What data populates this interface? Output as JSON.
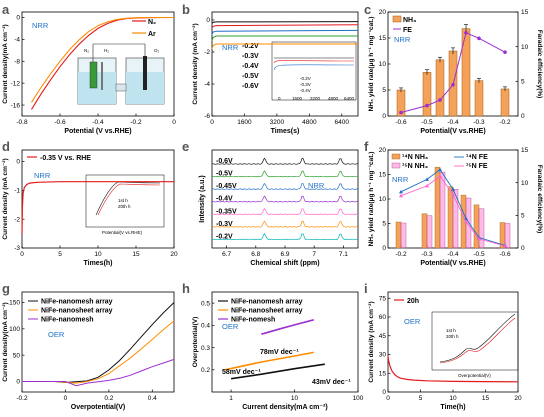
{
  "colors": {
    "red": "#e31a1c",
    "orange": "#ff8c00",
    "green": "#2ca02c",
    "blue": "#1e6fc8",
    "purple": "#9b30d0",
    "pink": "#ff66cc",
    "black": "#111111",
    "darkred": "#b01030",
    "bar": "#f4a259",
    "cyan": "#00b3b3"
  },
  "panels": {
    "a": {
      "letter": "a",
      "xlabel": "Potential (V vs.RHE)",
      "ylabel": "Current density(mA cm⁻²)",
      "note": "NRR",
      "inset": {
        "n2": "N₂",
        "ar": "Ar",
        "ln2": "N₂",
        "lh2": "H₂",
        "lo2": "O₂"
      }
    },
    "b": {
      "letter": "b",
      "xlabel": "Times(s)",
      "ylabel": "Current density (mA cm⁻²)",
      "note": "NRR",
      "inset": {
        "ylabel": "Current density (mA cm⁻²)",
        "labels": [
          "-0.2V",
          "-0.3V",
          "-0.4V"
        ]
      }
    },
    "c": {
      "letter": "c",
      "xlabel": "Potential(V vs.RHE)",
      "ylabel": "NH₃ yield rate(μg h⁻¹ mg⁻¹cat.)",
      "y2label": "Faradaic efficiency(%)",
      "note": "NRR"
    },
    "d": {
      "letter": "d",
      "xlabel": "Times(h)",
      "ylabel": "Current density (mA cm⁻²)",
      "note": "NRR",
      "legend": "-0.35 V vs. RHE",
      "inset": {
        "ylabel": "Current density (mA cm⁻²)",
        "xlabel": "Potential(V vs.RHE)",
        "l1": "1st h",
        "l2": "20th h"
      }
    },
    "e": {
      "letter": "e",
      "xlabel": "Chemical shift (ppm)",
      "ylabel": "Intensity (a.u.)",
      "note": "NRR"
    },
    "f": {
      "letter": "f",
      "xlabel": "Potential(V vs.RHE)",
      "ylabel": "NH₃ yield rate(μg h⁻¹ mg⁻¹cat.)",
      "y2label": "Faradaic efficiency(%)",
      "note": "NRR"
    },
    "g": {
      "letter": "g",
      "xlabel": "Overpotential(V)",
      "ylabel": "Current density(mA cm⁻²)",
      "note": "OER"
    },
    "h": {
      "letter": "h",
      "xlabel": "Current density(mA cm⁻²)",
      "ylabel": "Overpotential(V)",
      "note": "OER"
    },
    "i": {
      "letter": "i",
      "xlabel": "Time(h)",
      "ylabel": "Current density (mA cm⁻²)",
      "note": "OER",
      "legend": "20h",
      "inset": {
        "ylabel": "Current density (mA cm⁻²)",
        "xlabel": "Overpotential(V)",
        "l1": "1st h",
        "l2": "20th h"
      }
    }
  },
  "chart_data": [
    {
      "panel": "a",
      "type": "line",
      "xlabel": "Potential (V vs.RHE)",
      "ylabel": "Current density(mA cm⁻²)",
      "xlim": [
        -0.8,
        0.0
      ],
      "ylim": [
        -18,
        1
      ],
      "xticks": [
        -0.8,
        -0.6,
        -0.4,
        -0.2,
        0.0
      ],
      "yticks": [
        0,
        -4,
        -8,
        -12,
        -16
      ],
      "series": [
        {
          "name": "N₂",
          "color": "red",
          "x": [
            -0.75,
            -0.7,
            -0.65,
            -0.6,
            -0.55,
            -0.5,
            -0.45,
            -0.4,
            -0.35,
            -0.3,
            -0.25,
            -0.2,
            -0.1,
            0.0
          ],
          "y": [
            -16.8,
            -14.0,
            -11.4,
            -9.0,
            -6.8,
            -4.9,
            -3.3,
            -2.0,
            -1.1,
            -0.5,
            -0.2,
            -0.08,
            -0.02,
            0
          ]
        },
        {
          "name": "Ar",
          "color": "orange",
          "x": [
            -0.75,
            -0.7,
            -0.65,
            -0.6,
            -0.55,
            -0.5,
            -0.45,
            -0.4,
            -0.35,
            -0.3,
            -0.25,
            -0.2,
            -0.1,
            0.0
          ],
          "y": [
            -15.5,
            -12.8,
            -10.3,
            -8.0,
            -5.9,
            -4.1,
            -2.6,
            -1.5,
            -0.8,
            -0.35,
            -0.15,
            -0.05,
            -0.01,
            0
          ]
        }
      ]
    },
    {
      "panel": "b",
      "type": "line",
      "xlabel": "Times(s)",
      "ylabel": "Current density (mA cm⁻²)",
      "xlim": [
        0,
        7200
      ],
      "ylim": [
        -6,
        0.5
      ],
      "xticks": [
        0,
        1600,
        3200,
        4800,
        6400
      ],
      "yticks": [
        0,
        -2,
        -4,
        -6
      ],
      "series": [
        {
          "name": "-0.2V",
          "color": "black",
          "x": [
            0,
            50,
            200,
            7200
          ],
          "y": [
            -0.2,
            -0.15,
            -0.12,
            -0.1
          ]
        },
        {
          "name": "-0.3V",
          "color": "red",
          "x": [
            0,
            50,
            200,
            7200
          ],
          "y": [
            -0.5,
            -0.4,
            -0.35,
            -0.3
          ]
        },
        {
          "name": "-0.4V",
          "color": "blue",
          "x": [
            0,
            50,
            200,
            7200
          ],
          "y": [
            -0.9,
            -0.75,
            -0.7,
            -0.65
          ]
        },
        {
          "name": "-0.5V",
          "color": "green",
          "x": [
            0,
            50,
            200,
            7200
          ],
          "y": [
            -1.3,
            -1.1,
            -1.0,
            -1.0
          ]
        },
        {
          "name": "-0.6V",
          "color": "orange",
          "x": [
            0,
            50,
            200,
            7200
          ],
          "y": [
            -1.8,
            -1.6,
            -1.5,
            -1.5
          ]
        }
      ],
      "inset": {
        "xticks": [
          0,
          1600,
          3200,
          4800,
          6400
        ],
        "series_labels": [
          "-0.2V",
          "-0.3V",
          "-0.4V"
        ]
      }
    },
    {
      "panel": "c",
      "type": "bar",
      "xlabel": "Potential(V vs.RHE)",
      "ylabel": "NH₃ yield rate(μg h⁻¹ mg⁻¹cat.)",
      "y2label": "Faradaic efficiency(%)",
      "categories": [
        "-0.6",
        "-0.5",
        "-0.45",
        "-0.4",
        "-0.35",
        "-0.3",
        "-0.2"
      ],
      "x": [
        -0.6,
        -0.5,
        -0.45,
        -0.4,
        -0.35,
        -0.3,
        -0.2
      ],
      "xticks": [
        -0.6,
        -0.5,
        -0.4,
        -0.3,
        -0.2
      ],
      "xlim": [
        -0.65,
        -0.15
      ],
      "ylim": [
        0,
        20
      ],
      "yticks": [
        0,
        5,
        10,
        15,
        20
      ],
      "y2lim": [
        0,
        15
      ],
      "y2ticks": [
        0,
        5,
        10,
        15
      ],
      "series": [
        {
          "name": "NH₃",
          "color": "bar",
          "values": [
            5.0,
            8.4,
            10.8,
            12.5,
            16.8,
            6.8,
            5.2
          ],
          "err": [
            0.4,
            0.5,
            0.5,
            0.6,
            0.8,
            0.4,
            0.4
          ]
        },
        {
          "name": "FE",
          "color": "purple",
          "axis": "y2",
          "values": [
            0.5,
            1.5,
            2.3,
            4.5,
            12.0,
            11.2,
            9.2
          ]
        }
      ]
    },
    {
      "panel": "d",
      "type": "line",
      "xlabel": "Times(h)",
      "ylabel": "Current density (mA cm⁻²)",
      "xlim": [
        0,
        20
      ],
      "ylim": [
        -3,
        0.4
      ],
      "xticks": [
        0,
        5,
        10,
        15,
        20
      ],
      "yticks": [
        0,
        -1,
        -2,
        -3
      ],
      "series": [
        {
          "name": "-0.35 V vs. RHE",
          "color": "red",
          "x": [
            0,
            0.05,
            0.15,
            0.3,
            0.6,
            1,
            2,
            5,
            10,
            15,
            20
          ],
          "y": [
            -2.5,
            -1.6,
            -1.1,
            -0.9,
            -0.8,
            -0.75,
            -0.72,
            -0.7,
            -0.7,
            -0.7,
            -0.7
          ]
        }
      ],
      "inset": {
        "xticks": [
          -0.8,
          -0.6,
          -0.4,
          -0.2,
          0.0
        ],
        "series": [
          "1st h",
          "20th h"
        ]
      }
    },
    {
      "panel": "e",
      "type": "line",
      "xlabel": "Chemical shift (ppm)",
      "ylabel": "Intensity (a.u.)",
      "xlim": [
        6.65,
        7.15
      ],
      "xticks": [
        6.7,
        6.8,
        6.9,
        7.0,
        7.1
      ],
      "peaks_ppm": [
        6.83,
        6.96,
        7.09
      ],
      "series": [
        {
          "name": "-0.6V",
          "color": "black"
        },
        {
          "name": "-0.5V",
          "color": "green"
        },
        {
          "name": "-0.45V",
          "color": "blue"
        },
        {
          "name": "-0.4V",
          "color": "purple"
        },
        {
          "name": "-0.35V",
          "color": "pink"
        },
        {
          "name": "-0.3V",
          "color": "orange"
        },
        {
          "name": "-0.2V",
          "color": "cyan"
        }
      ]
    },
    {
      "panel": "f",
      "type": "bar",
      "xlabel": "Potential(V vs.RHE)",
      "ylabel": "NH₃ yield rate(μg h⁻¹ mg⁻¹cat.)",
      "y2label": "Faradaic efficiency(%)",
      "categories": [
        "-0.2",
        "-0.3",
        "-0.35",
        "-0.4",
        "-0.45",
        "-0.5",
        "-0.6"
      ],
      "x": [
        -0.2,
        -0.3,
        -0.35,
        -0.4,
        -0.45,
        -0.5,
        -0.6
      ],
      "xticks": [
        -0.2,
        -0.3,
        -0.4,
        -0.5,
        -0.6
      ],
      "xlim": [
        -0.15,
        -0.65
      ],
      "ylim": [
        0,
        20
      ],
      "yticks": [
        0,
        5,
        10,
        15,
        20
      ],
      "y2lim": [
        0,
        15
      ],
      "y2ticks": [
        0,
        5,
        10,
        15
      ],
      "series": [
        {
          "name": "¹⁴N NH₃",
          "color": "bar",
          "values": [
            5.3,
            7.0,
            16.5,
            12.5,
            10.8,
            8.8,
            5.2
          ]
        },
        {
          "name": "¹⁵N NH₃",
          "color": "pink",
          "values": [
            5.1,
            6.6,
            15.5,
            12.0,
            10.2,
            8.0,
            5.0
          ]
        },
        {
          "name": "¹⁴N FE",
          "color": "blue",
          "axis": "y2",
          "values": [
            8.6,
            10.5,
            12.0,
            9.0,
            4.5,
            1.6,
            0.4
          ]
        },
        {
          "name": "¹⁵N FE",
          "color": "pink",
          "axis": "y2",
          "values": [
            8.0,
            9.5,
            11.0,
            8.2,
            4.0,
            1.4,
            0.3
          ]
        }
      ]
    },
    {
      "panel": "g",
      "type": "line",
      "xlabel": "Overpotential(V)",
      "ylabel": "Current density(mA cm⁻²)",
      "xlim": [
        -0.2,
        0.5
      ],
      "ylim": [
        -20,
        170
      ],
      "xticks": [
        -0.2,
        0.0,
        0.2,
        0.4
      ],
      "yticks": [
        0,
        50,
        100,
        150
      ],
      "series": [
        {
          "name": "NiFe-nanomesh array",
          "color": "black",
          "x": [
            -0.2,
            -0.05,
            0.0,
            0.1,
            0.15,
            0.2,
            0.25,
            0.3,
            0.35,
            0.4,
            0.45,
            0.5
          ],
          "y": [
            0,
            0,
            -2,
            1,
            8,
            22,
            40,
            62,
            85,
            108,
            130,
            150
          ]
        },
        {
          "name": "NiFe-nanosheet array",
          "color": "orange",
          "x": [
            -0.2,
            -0.05,
            0.05,
            0.1,
            0.15,
            0.2,
            0.25,
            0.3,
            0.35,
            0.4,
            0.45,
            0.5
          ],
          "y": [
            0,
            0,
            -3,
            0,
            5,
            15,
            30,
            45,
            62,
            80,
            98,
            115
          ]
        },
        {
          "name": "NiFe-nanomesh",
          "color": "purple",
          "x": [
            -0.2,
            0.0,
            0.05,
            0.1,
            0.2,
            0.25,
            0.3,
            0.35,
            0.4,
            0.45,
            0.5
          ],
          "y": [
            0,
            0,
            -8,
            -3,
            2,
            6,
            12,
            20,
            28,
            35,
            42
          ]
        }
      ]
    },
    {
      "panel": "h",
      "type": "line",
      "xlabel": "Current density(mA cm⁻²)",
      "ylabel": "Overpotential(V)",
      "xscale": "log",
      "xlim": [
        0.5,
        100
      ],
      "ylim": [
        0.1,
        0.55
      ],
      "yticks": [
        0.2,
        0.3,
        0.4,
        0.5
      ],
      "xticks": [
        1,
        10,
        100
      ],
      "xticklabels": [
        "1",
        "10",
        "100"
      ],
      "series": [
        {
          "name": "NiFe-nanomesh array",
          "color": "black",
          "x": [
            1,
            3,
            10,
            30
          ],
          "y": [
            0.16,
            0.18,
            0.205,
            0.225
          ],
          "annotation": "43mV dec⁻¹"
        },
        {
          "name": "NiFe-nanosheet array",
          "color": "orange",
          "x": [
            0.8,
            3,
            10,
            20
          ],
          "y": [
            0.2,
            0.235,
            0.262,
            0.278
          ],
          "annotation": "58mV dec⁻¹"
        },
        {
          "name": "NiFe-nomesh",
          "color": "purple",
          "x": [
            3,
            6,
            10,
            20
          ],
          "y": [
            0.36,
            0.385,
            0.402,
            0.425
          ],
          "annotation": "78mV dec⁻¹"
        }
      ]
    },
    {
      "panel": "i",
      "type": "line",
      "xlabel": "Time(h)",
      "ylabel": "Current density (mA cm⁻²)",
      "xlim": [
        0,
        20
      ],
      "ylim": [
        0,
        80
      ],
      "xticks": [
        0,
        5,
        10,
        15,
        20
      ],
      "yticks": [
        0,
        15,
        30,
        45,
        60,
        75
      ],
      "series": [
        {
          "name": "20h",
          "color": "red",
          "x": [
            0,
            0.1,
            0.3,
            0.6,
            1,
            1.5,
            2,
            3,
            4,
            6,
            10,
            15,
            20
          ],
          "y": [
            29,
            25,
            21,
            17,
            14,
            12,
            11,
            10,
            9.5,
            9,
            8.5,
            8.3,
            8.2
          ]
        }
      ],
      "inset": {
        "xticks": [
          0.1,
          0.2,
          0.3,
          0.4,
          0.5
        ],
        "yticks": [
          0,
          50,
          100,
          150,
          200,
          250,
          300,
          350,
          400
        ],
        "series": [
          "1st h",
          "20th h"
        ]
      }
    }
  ]
}
